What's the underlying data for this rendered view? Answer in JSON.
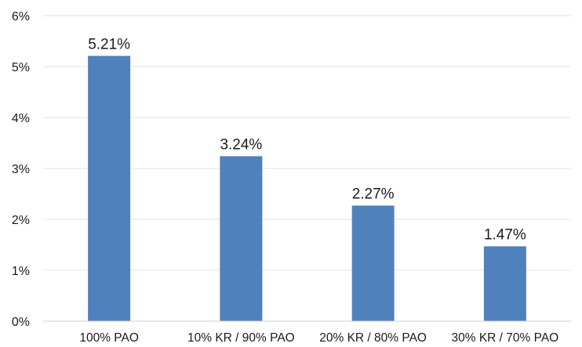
{
  "chart_data": {
    "type": "bar",
    "categories": [
      "100% PAO",
      "10% KR / 90% PAO",
      "20% KR / 80% PAO",
      "30% KR / 70% PAO"
    ],
    "values": [
      5.21,
      3.24,
      2.27,
      1.47
    ],
    "data_labels": [
      "5.21%",
      "3.24%",
      "2.27%",
      "1.47%"
    ],
    "yticks": [
      0,
      1,
      2,
      3,
      4,
      5,
      6
    ],
    "ytick_labels": [
      "0%",
      "1%",
      "2%",
      "3%",
      "4%",
      "5%",
      "6%"
    ],
    "ylim": [
      0,
      6
    ],
    "grid": true,
    "legend": "none",
    "bar_color": "#4f81bd"
  }
}
